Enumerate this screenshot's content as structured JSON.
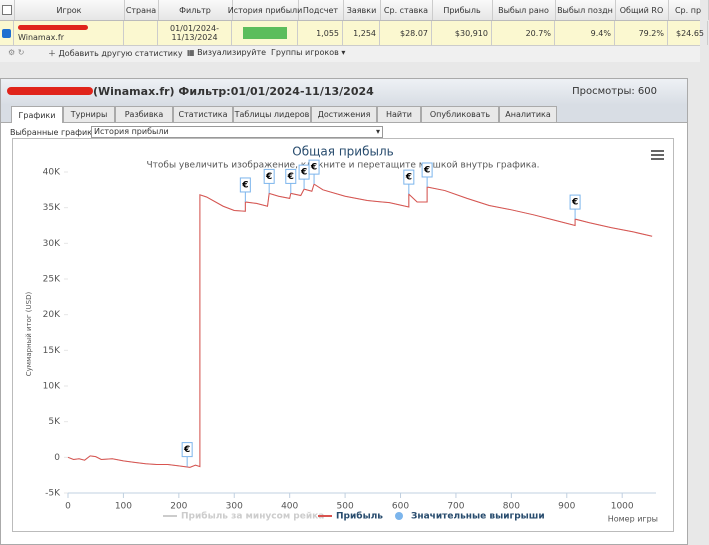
{
  "table": {
    "headers": [
      "Игрок",
      "Страна",
      "Фильтр",
      "История прибыли",
      "Подсчет",
      "Заявки",
      "Ср. ставка",
      "Прибыль",
      "Выбыл рано",
      "Выбыл поздн",
      "Общий RO",
      "Ср. пр"
    ],
    "player_site": "Winamax.fr",
    "filter": [
      "01/01/2024-",
      "11/13/2024"
    ],
    "cells": [
      "1,055",
      "1,254",
      "$28.07",
      "$30,910",
      "20.7%",
      "9.4%",
      "79.2%",
      "$24.65"
    ]
  },
  "toolbar": [
    "Добавить другую статистику",
    "Визуализируйте",
    "Группы игроков"
  ],
  "panel": {
    "title": "(Winamax.fr) Фильтр:01/01/2024-11/13/2024",
    "views": "Просмотры: 600",
    "tabs": [
      "Графики",
      "Турниры",
      "Разбивка",
      "Статистика",
      "Таблицы лидеров",
      "Достижения",
      "Найти",
      "Опубликовать",
      "Аналитика"
    ],
    "selector_label": "Выбранные графики:",
    "selector_value": "История прибыли"
  },
  "chart_data": {
    "type": "line",
    "title": "Общая прибыль",
    "subtitle": "Чтобы увеличить изображение, кликните и перетащите мышкой внутрь графика.",
    "y_label": "Суммарный итог (USD)",
    "x_label": "Номер игры",
    "x": [
      0,
      10,
      20,
      30,
      40,
      50,
      60,
      80,
      100,
      120,
      140,
      160,
      180,
      200,
      220,
      230,
      238,
      238,
      250,
      280,
      300,
      320,
      320,
      340,
      360,
      363,
      380,
      400,
      402,
      420,
      426,
      440,
      444,
      460,
      500,
      540,
      580,
      615,
      615,
      630,
      648,
      648,
      680,
      720,
      760,
      800,
      840,
      880,
      915,
      915,
      940,
      980,
      1020,
      1054
    ],
    "series": [
      {
        "name": "Прибыль за минусом рейка",
        "color": "#cccccc",
        "values": [
          0,
          -300,
          -200,
          -400,
          200,
          100,
          -300,
          -200,
          -500,
          -700,
          -900,
          -1000,
          -1000,
          -1200,
          -1400,
          -1100,
          -1300,
          36800,
          36500,
          35200,
          34600,
          34500,
          35800,
          35600,
          35200,
          37000,
          36600,
          36300,
          37000,
          36700,
          37600,
          37300,
          38300,
          37500,
          36600,
          36000,
          35700,
          35100,
          36900,
          35800,
          35800,
          37900,
          37400,
          36300,
          35300,
          34700,
          34000,
          33200,
          32500,
          33400,
          32900,
          32200,
          31600,
          31000
        ]
      },
      {
        "name": "Прибыль",
        "color": "#d9534f",
        "values": [
          0,
          -300,
          -200,
          -400,
          200,
          100,
          -300,
          -200,
          -500,
          -700,
          -900,
          -1000,
          -1000,
          -1200,
          -1400,
          -1100,
          -1300,
          36800,
          36500,
          35200,
          34600,
          34500,
          35800,
          35600,
          35200,
          37000,
          36600,
          36300,
          37000,
          36700,
          37600,
          37300,
          38300,
          37500,
          36600,
          36000,
          35700,
          35100,
          36900,
          35800,
          35800,
          37900,
          37400,
          36300,
          35300,
          34700,
          34000,
          33200,
          32500,
          33400,
          32900,
          32200,
          31600,
          31000
        ]
      },
      {
        "name": "Значительные выигрыши",
        "type": "scatter",
        "color": "#7cb5ec",
        "marker_label": "€",
        "x": [
          215,
          320,
          363,
          402,
          426,
          444,
          615,
          648,
          915
        ],
        "values": [
          -1300,
          35800,
          37000,
          37000,
          37600,
          38300,
          36900,
          37900,
          33400
        ]
      }
    ],
    "xlim": [
      0,
      1061
    ],
    "xticks": [
      0,
      100,
      200,
      300,
      400,
      500,
      600,
      700,
      800,
      900,
      1000
    ],
    "ylim": [
      -5000,
      40000
    ],
    "yticks": [
      {
        "value": -5000,
        "label": "-5K"
      },
      0,
      {
        "value": 5000,
        "label": "5K"
      },
      {
        "value": 10000,
        "label": "10K"
      },
      {
        "value": 15000,
        "label": "15K"
      },
      {
        "value": 20000,
        "label": "20K"
      },
      {
        "value": 25000,
        "label": "25K"
      },
      {
        "value": 30000,
        "label": "30K"
      },
      {
        "value": 35000,
        "label": "35K"
      },
      {
        "value": 40000,
        "label": "40K"
      }
    ],
    "grid": false
  }
}
